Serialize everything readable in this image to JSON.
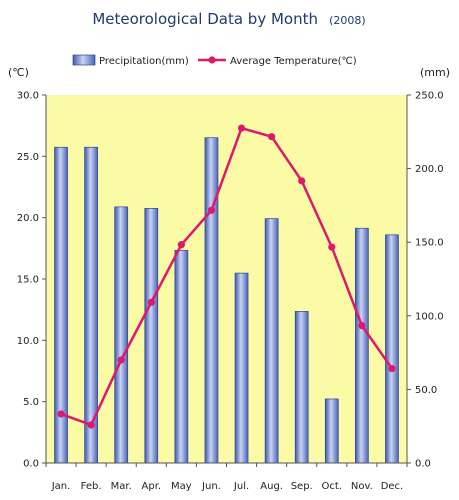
{
  "chart_data": {
    "type": "bar-line",
    "title": "Meteorological  Data by Month",
    "title_suffix": "(2008)",
    "categories": [
      "Jan.",
      "Feb.",
      "Mar.",
      "Apr.",
      "May",
      "Jun.",
      "Jul.",
      "Aug.",
      "Sep.",
      "Oct.",
      "Nov.",
      "Dec."
    ],
    "series": [
      {
        "name": "Precipitation(mm)",
        "type": "bar",
        "axis": "right",
        "color": "#7f96d8",
        "values": [
          214.5,
          214.5,
          174,
          173,
          144.5,
          221,
          129,
          166,
          103,
          43.5,
          159.5,
          155
        ]
      },
      {
        "name": "Average Temperature(℃)",
        "type": "line",
        "axis": "left",
        "color": "#e0186c",
        "values": [
          4.0,
          3.1,
          8.4,
          13.1,
          17.8,
          20.6,
          27.3,
          26.6,
          23.0,
          17.6,
          11.2,
          7.7
        ]
      }
    ],
    "y_left": {
      "unit_label": "(℃)",
      "ylim": [
        0,
        30
      ],
      "ticks": [
        "0.0",
        "5.0",
        "10.0",
        "15.0",
        "20.0",
        "25.0",
        "30.0"
      ]
    },
    "y_right": {
      "unit_label": "(mm)",
      "ylim": [
        0,
        250
      ],
      "ticks": [
        "0.0",
        "50.0",
        "100.0",
        "150.0",
        "200.0",
        "250.0"
      ]
    },
    "plot_background": "#fbfba6",
    "legend_position": "top",
    "grid": false
  }
}
